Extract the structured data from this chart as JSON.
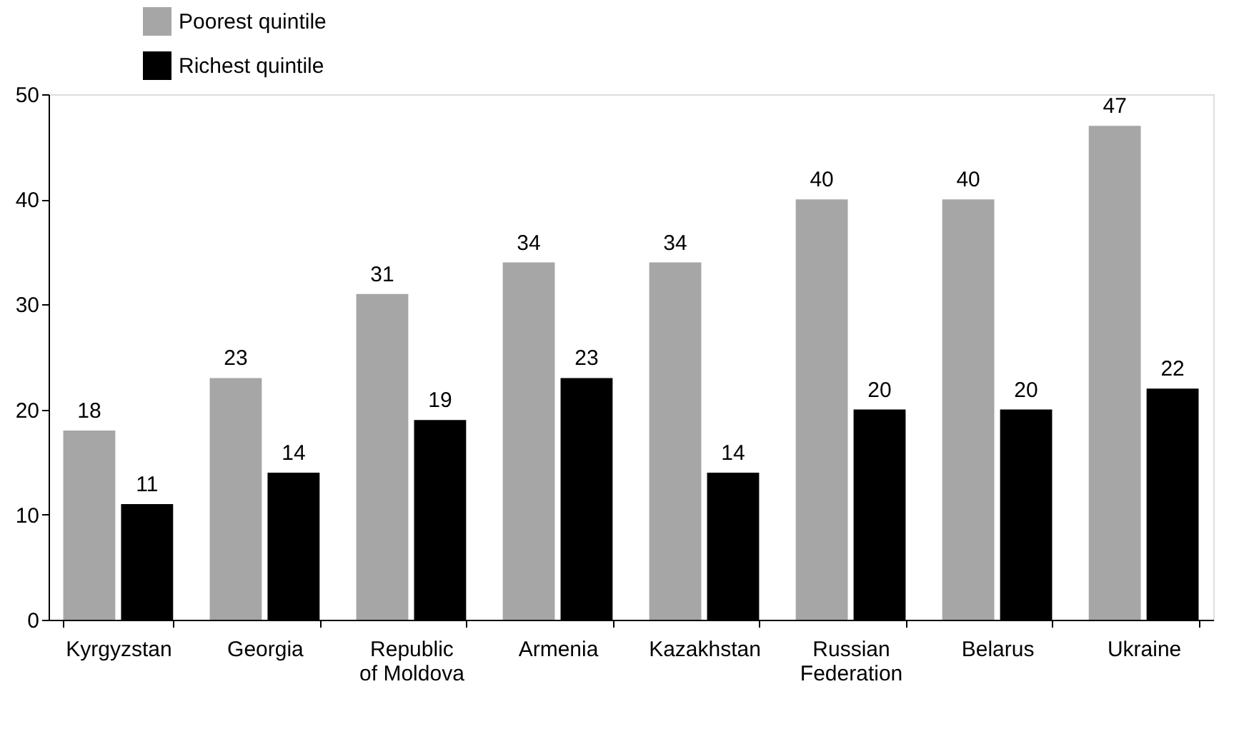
{
  "chart_data": {
    "type": "bar",
    "categories": [
      "Kyrgyzstan",
      "Georgia",
      "Republic\nof Moldova",
      "Armenia",
      "Kazakhstan",
      "Russian\nFederation",
      "Belarus",
      "Ukraine"
    ],
    "series": [
      {
        "name": "Poorest quintile",
        "color": "#a6a6a6",
        "values": [
          18,
          23,
          31,
          34,
          34,
          40,
          40,
          47
        ]
      },
      {
        "name": "Richest quintile",
        "color": "#000000",
        "values": [
          11,
          14,
          19,
          23,
          14,
          20,
          20,
          22
        ]
      }
    ],
    "ylim": [
      0,
      50
    ],
    "yticks": [
      0,
      10,
      20,
      30,
      40,
      50
    ],
    "grid": false,
    "legend": "top left",
    "data_labels": true
  }
}
